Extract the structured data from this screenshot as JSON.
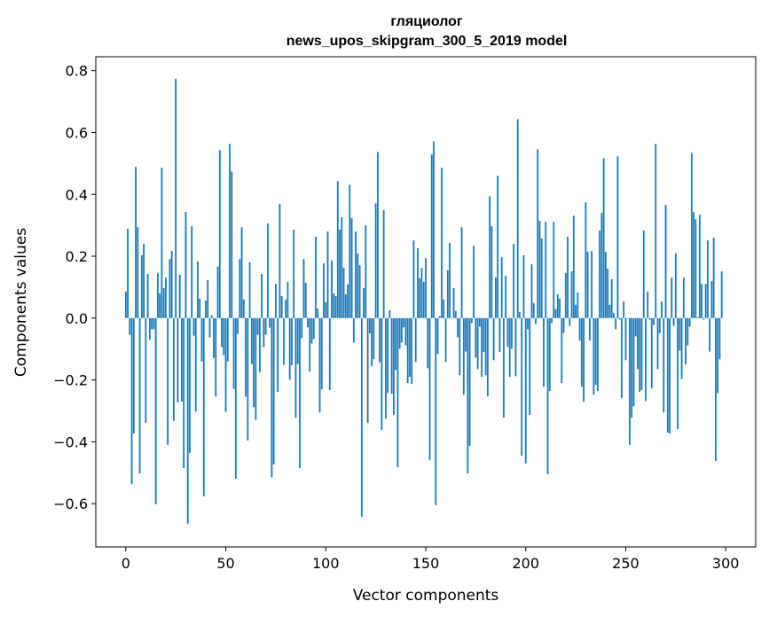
{
  "chart_data": {
    "type": "bar",
    "title_line1": "гляциолог",
    "title_line2": "news_upos_skipgram_300_5_2019 model",
    "xlabel": "Vector components",
    "ylabel": "Components values",
    "xlim": [
      -15,
      315
    ],
    "ylim": [
      -0.74,
      0.845
    ],
    "xticks": [
      0,
      50,
      100,
      150,
      200,
      250,
      300
    ],
    "xtick_labels": [
      "0",
      "50",
      "100",
      "150",
      "200",
      "250",
      "300"
    ],
    "yticks": [
      -0.6,
      -0.4,
      -0.2,
      0.0,
      0.2,
      0.4,
      0.6,
      0.8
    ],
    "ytick_labels": [
      "−0.6",
      "−0.4",
      "−0.2",
      "0.0",
      "0.2",
      "0.4",
      "0.6",
      "0.8"
    ],
    "grid": false,
    "bar_color": "#1f77b4",
    "values": [
      0.086,
      0.289,
      -0.054,
      -0.536,
      -0.373,
      0.489,
      0.294,
      -0.502,
      0.203,
      0.24,
      -0.339,
      0.143,
      -0.07,
      -0.036,
      -0.036,
      -0.602,
      0.146,
      0.08,
      0.486,
      0.097,
      0.131,
      -0.41,
      0.191,
      0.217,
      -0.333,
      0.774,
      -0.273,
      0.14,
      -0.27,
      -0.485,
      0.343,
      -0.665,
      -0.436,
      0.297,
      -0.057,
      -0.302,
      0.183,
      0.063,
      -0.14,
      -0.576,
      0.057,
      0.123,
      -0.063,
      0.009,
      -0.129,
      -0.254,
      0.166,
      0.543,
      -0.094,
      -0.12,
      -0.303,
      -0.14,
      0.563,
      0.474,
      -0.229,
      -0.519,
      -0.051,
      0.191,
      0.294,
      0.06,
      -0.254,
      -0.396,
      0.18,
      -0.149,
      -0.288,
      -0.329,
      -0.054,
      -0.176,
      0.143,
      -0.094,
      -0.054,
      0.306,
      -0.031,
      -0.514,
      -0.473,
      0.111,
      -0.239,
      0.369,
      0.071,
      -0.151,
      0.06,
      0.117,
      -0.199,
      -0.153,
      0.286,
      -0.322,
      -0.149,
      -0.485,
      -0.065,
      0.191,
      0.114,
      -0.03,
      -0.173,
      -0.082,
      -0.068,
      0.263,
      0.031,
      -0.305,
      -0.23,
      0.177,
      0.051,
      0.28,
      -0.233,
      0.186,
      0.08,
      0.071,
      0.443,
      0.286,
      0.326,
      0.163,
      0.077,
      0.109,
      0.431,
      0.323,
      -0.079,
      0.28,
      0.209,
      0.171,
      -0.642,
      0.097,
      0.3,
      -0.339,
      -0.05,
      -0.156,
      -0.133,
      0.371,
      0.537,
      -0.143,
      -0.362,
      0.349,
      -0.325,
      -0.242,
      0.026,
      -0.245,
      -0.313,
      -0.168,
      -0.482,
      -0.099,
      -0.079,
      -0.03,
      -0.088,
      -0.21,
      -0.19,
      -0.213,
      0.251,
      -0.142,
      0.226,
      0.129,
      0.163,
      0.117,
      0.194,
      -0.162,
      -0.459,
      0.529,
      0.571,
      -0.605,
      -0.116,
      0.006,
      0.486,
      0.06,
      -0.142,
      0.154,
      0.243,
      -0.002,
      0.097,
      0.023,
      -0.062,
      -0.185,
      0.294,
      -0.248,
      -0.108,
      -0.502,
      -0.413,
      -0.016,
      0.234,
      -0.128,
      -0.165,
      -0.028,
      -0.19,
      -0.11,
      -0.185,
      -0.253,
      0.394,
      0.297,
      -0.136,
      0.131,
      0.46,
      -0.11,
      0.197,
      -0.322,
      0.137,
      -0.093,
      -0.19,
      -0.099,
      0.24,
      -0.188,
      0.643,
      0.02,
      -0.445,
      0.203,
      -0.47,
      -0.036,
      -0.313,
      0.174,
      0.049,
      -0.019,
      0.546,
      0.314,
      0.257,
      -0.222,
      0.311,
      -0.505,
      -0.236,
      -0.016,
      0.311,
      0.029,
      0.077,
      0.063,
      -0.21,
      -0.048,
      0.146,
      0.263,
      -0.025,
      0.151,
      0.331,
      0.043,
      0.083,
      -0.073,
      -0.222,
      -0.27,
      0.374,
      0.214,
      -0.073,
      0.217,
      -0.248,
      -0.216,
      -0.236,
      0.283,
      0.34,
      0.517,
      0.214,
      0.16,
      0.043,
      0.126,
      0.017,
      -0.036,
      0.523,
      -0.005,
      -0.259,
      0.054,
      -0.136,
      -0.002,
      -0.41,
      -0.322,
      -0.285,
      -0.059,
      -0.165,
      -0.239,
      -0.233,
      0.283,
      -0.268,
      0.086,
      -0.005,
      -0.228,
      -0.022,
      0.563,
      -0.165,
      -0.05,
      0.054,
      -0.305,
      0.366,
      -0.37,
      -0.373,
      0.131,
      -0.025,
      0.209,
      -0.359,
      -0.105,
      -0.197,
      0.131,
      -0.15,
      -0.088,
      -0.028,
      0.534,
      0.343,
      0.32,
      0.003,
      0.334,
      0.111,
      -0.005,
      0.111,
      0.251,
      -0.108,
      0.12,
      0.26,
      -0.462,
      -0.242,
      -0.133,
      0.151
    ]
  }
}
